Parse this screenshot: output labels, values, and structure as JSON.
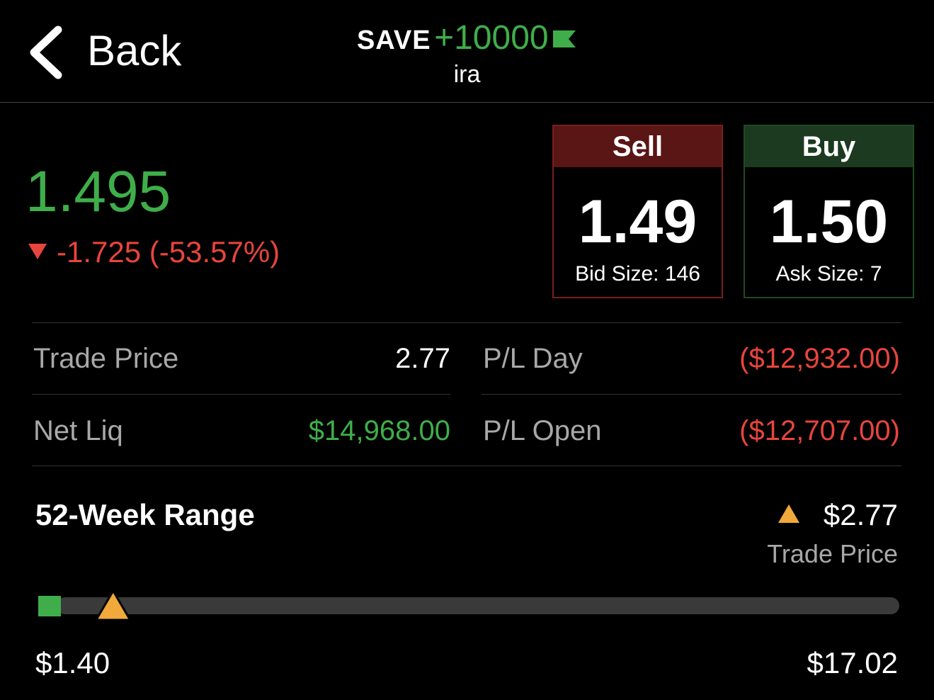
{
  "header": {
    "back": "Back",
    "symbol": "SAVE",
    "quantity": "+10000",
    "account": "ira"
  },
  "quote": {
    "last": "1.495",
    "change": "-1.725 (-53.57%)"
  },
  "sell": {
    "label": "Sell",
    "price": "1.49",
    "size": "Bid Size: 146"
  },
  "buy": {
    "label": "Buy",
    "price": "1.50",
    "size": "Ask Size: 7"
  },
  "stats": {
    "rows": [
      [
        {
          "label": "Trade Price",
          "value": "2.77"
        },
        {
          "label": "P/L Day",
          "value": "($12,932.00)"
        }
      ],
      [
        {
          "label": "Net Liq",
          "value": "$14,968.00"
        },
        {
          "label": "P/L Open",
          "value": "($12,707.00)"
        }
      ]
    ]
  },
  "range": {
    "title": "52-Week Range",
    "marker_caption": "Trade Price",
    "low": {
      "value": 1.4,
      "label": "$1.40"
    },
    "high": {
      "value": 17.02,
      "label": "$17.02"
    },
    "current": {
      "value": 2.77,
      "label": "$2.77"
    }
  }
}
